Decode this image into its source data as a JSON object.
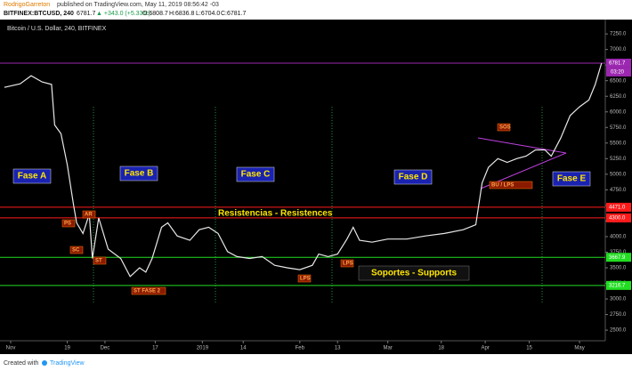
{
  "header": {
    "author": "RodrigoGarreton",
    "published": "published on TradingView.com, May 11, 2019 08:56:42 -03",
    "symbol": "BITFINEX:BTCUSD, 240",
    "last": "6781.7",
    "change": "▲ +343.0 (+5.33%)",
    "open": "O:6808.7",
    "high": "H:6836.8",
    "low": "L:6704.0",
    "close": "C:6781.7"
  },
  "footer": {
    "prefix": "Created with",
    "brand": "TradingView"
  },
  "chart_data": {
    "type": "line",
    "title": "Bitcoin / U.S. Dollar, 240, BITFINEX",
    "countdown": "03:20",
    "x": [
      -2,
      3,
      6.5,
      10,
      13,
      14,
      16,
      18,
      20,
      21,
      23,
      25,
      26,
      28,
      31,
      35,
      38,
      41,
      43,
      45,
      48,
      50,
      53,
      57,
      60,
      63,
      66,
      69,
      72,
      76,
      80,
      84,
      88,
      92,
      96,
      98,
      101,
      104,
      107,
      109,
      111,
      115,
      120,
      126,
      132,
      138,
      144,
      148,
      150,
      152,
      155,
      158,
      161,
      164,
      167,
      170,
      172,
      175,
      178,
      181,
      184,
      186,
      188
    ],
    "series": [
      {
        "name": "BTCUSD",
        "color": "#e8e8e8",
        "values": [
          6393,
          6450,
          6580,
          6480,
          6440,
          5790,
          5650,
          5150,
          4510,
          4220,
          4050,
          4360,
          3650,
          4300,
          3800,
          3650,
          3360,
          3500,
          3430,
          3650,
          4150,
          4220,
          4010,
          3940,
          4110,
          4150,
          4050,
          3760,
          3680,
          3650,
          3680,
          3540,
          3500,
          3470,
          3540,
          3720,
          3680,
          3720,
          3960,
          4150,
          3940,
          3910,
          3960,
          3960,
          4010,
          4050,
          4110,
          4190,
          4860,
          5110,
          5250,
          5190,
          5250,
          5290,
          5390,
          5390,
          5290,
          5580,
          5940,
          6080,
          6190,
          6440,
          6781.7
        ]
      }
    ],
    "xlim": [
      -3.4,
      189.2
    ],
    "ylim": [
      2330,
      7480
    ],
    "grid": false,
    "xticks": [
      {
        "value": 0,
        "label": "Nov"
      },
      {
        "value": 18,
        "label": "19"
      },
      {
        "value": 30,
        "label": "Dec"
      },
      {
        "value": 46,
        "label": "17"
      },
      {
        "value": 61,
        "label": "2019"
      },
      {
        "value": 74,
        "label": "14"
      },
      {
        "value": 92,
        "label": "Feb"
      },
      {
        "value": 104,
        "label": "13"
      },
      {
        "value": 120,
        "label": "Mar"
      },
      {
        "value": 137,
        "label": "18"
      },
      {
        "value": 151,
        "label": "Apr"
      },
      {
        "value": 165,
        "label": "15"
      },
      {
        "value": 181,
        "label": "May"
      }
    ],
    "yticks": [
      {
        "value": 2500,
        "label": "2500.0"
      },
      {
        "value": 2750,
        "label": "2750.0"
      },
      {
        "value": 3000,
        "label": "3000.0"
      },
      {
        "value": 3250,
        "label": "3250.0"
      },
      {
        "value": 3500,
        "label": "3500.0"
      },
      {
        "value": 3750,
        "label": "3750.0"
      },
      {
        "value": 4000,
        "label": "4000.0"
      },
      {
        "value": 4250,
        "label": "4250.0"
      },
      {
        "value": 4500,
        "label": "4500.0"
      },
      {
        "value": 4750,
        "label": "4750.0"
      },
      {
        "value": 5000,
        "label": "5000.0"
      },
      {
        "value": 5250,
        "label": "5250.0"
      },
      {
        "value": 5500,
        "label": "5500.0"
      },
      {
        "value": 5750,
        "label": "5750.0"
      },
      {
        "value": 6000,
        "label": "6000.0"
      },
      {
        "value": 6250,
        "label": "6250.0"
      },
      {
        "value": 6500,
        "label": "6500.0"
      },
      {
        "value": 6750,
        "label": "6750.0"
      },
      {
        "value": 7000,
        "label": "7000.0"
      },
      {
        "value": 7250,
        "label": "7250.0"
      }
    ],
    "hlines": [
      {
        "value": 6781.7,
        "label": "6781.7",
        "color": "#9c27b0"
      },
      {
        "value": 4471,
        "label": "4471.0",
        "color": "#ff1a1a"
      },
      {
        "value": 4300,
        "label": "4300.0",
        "color": "#ff1a1a"
      },
      {
        "value": 3667.9,
        "label": "3667.9",
        "color": "#22dd22"
      },
      {
        "value": 3216.7,
        "label": "3216.7",
        "color": "#22dd22"
      }
    ],
    "phases": [
      "Fase A",
      "Fase B",
      "Fase C",
      "Fase D",
      "Fase E"
    ],
    "resistance": "Resistencias - Resistences",
    "support": "Soportes - Supports",
    "events": [
      "PS",
      "AR",
      "SC",
      "ST",
      "ST FASE 2",
      "LPS",
      "LPS",
      "SOS",
      "BU   /   LPS"
    ]
  }
}
